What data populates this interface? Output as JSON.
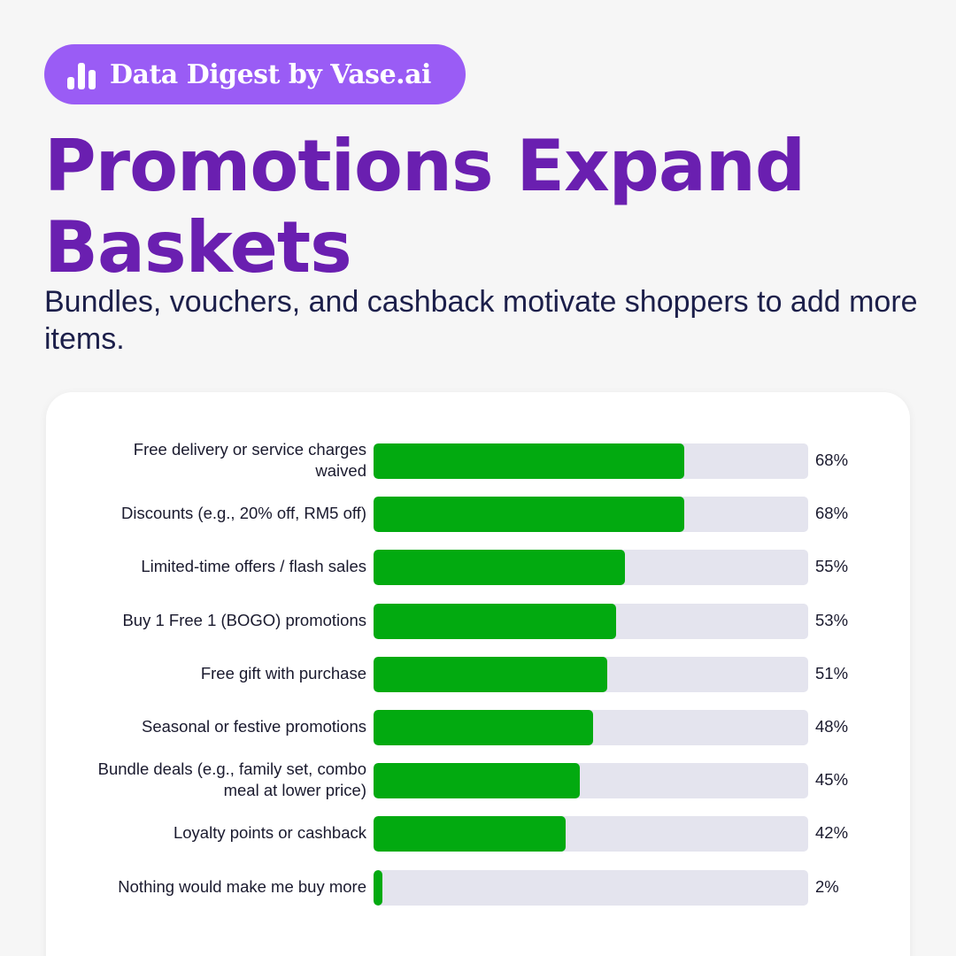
{
  "badge": {
    "text": "Data Digest by Vase.ai",
    "icon": "bar-chart-icon"
  },
  "title": "Promotions Expand Baskets",
  "subtitle": "Bundles, vouchers, and cashback motivate shoppers to add more items.",
  "colors": {
    "accent": "#6a1fb0",
    "badge": "#9a5cf5",
    "bar": "#02aa10",
    "track": "#e4e4ee"
  },
  "chart_data": {
    "type": "bar",
    "orientation": "horizontal",
    "categories": [
      "Free delivery or service charges waived",
      "Discounts (e.g., 20% off, RM5 off)",
      "Limited-time offers / flash sales",
      "Buy 1 Free 1 (BOGO) promotions",
      "Free gift with purchase",
      "Seasonal or festive promotions",
      "Bundle deals (e.g., family set, combo meal at lower price)",
      "Loyalty points or cashback",
      "Nothing would make me buy more"
    ],
    "values": [
      68,
      68,
      55,
      53,
      51,
      48,
      45,
      42,
      2
    ],
    "value_labels": [
      "68%",
      "68%",
      "55%",
      "53%",
      "51%",
      "48%",
      "45%",
      "42%",
      "2%"
    ],
    "xlim": [
      0,
      95
    ],
    "grid": false
  }
}
